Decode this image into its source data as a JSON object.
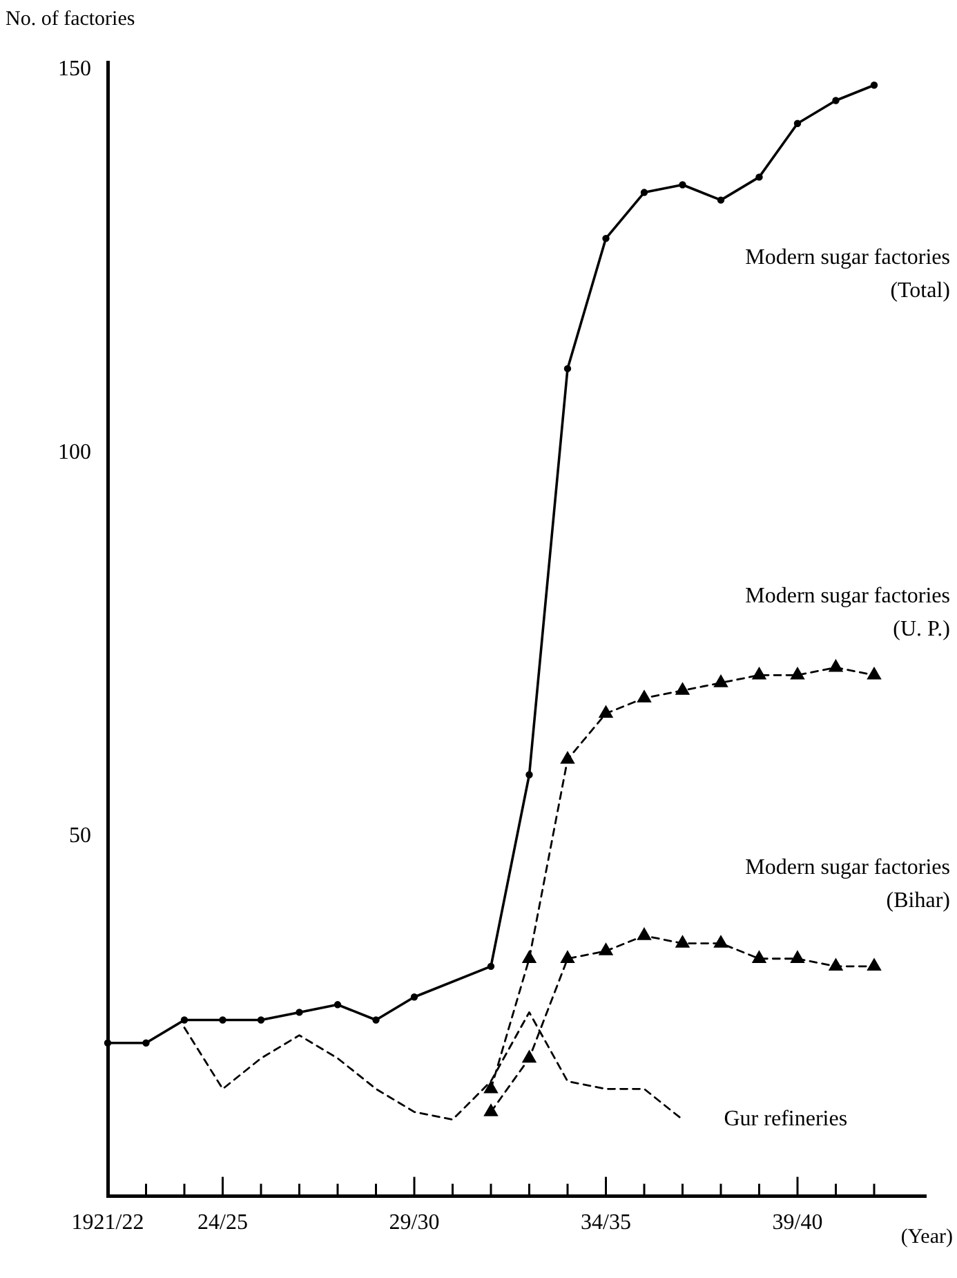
{
  "chart_data": {
    "type": "line",
    "ylabel": "No. of factories",
    "xlabel": "(Year)",
    "categories": [
      "1921/22",
      null,
      null,
      "24/25",
      null,
      null,
      null,
      null,
      "29/30",
      null,
      null,
      null,
      null,
      "34/35",
      null,
      null,
      null,
      null,
      "39/40",
      null,
      null
    ],
    "ylim": [
      3,
      151
    ],
    "yticks": [
      50,
      100,
      150
    ],
    "grid": false,
    "legend": false,
    "series": [
      {
        "name": "Modern sugar factories (Total)",
        "color": "#000000",
        "marker": "circle",
        "line_style": "solid",
        "values": [
          23,
          23,
          26,
          26,
          26,
          27,
          28,
          26,
          29,
          null,
          33,
          58,
          111,
          128,
          134,
          135,
          133,
          136,
          143,
          146,
          148
        ]
      },
      {
        "name": "Modern sugar factories (U. P.)",
        "color": "#000000",
        "marker": "triangle",
        "line_style": "dashed",
        "values": [
          null,
          null,
          null,
          null,
          null,
          null,
          null,
          null,
          null,
          null,
          17,
          34,
          60,
          66,
          68,
          69,
          70,
          71,
          71,
          72,
          71
        ]
      },
      {
        "name": "Modern sugar factories (Bihar)",
        "color": "#000000",
        "marker": "triangle",
        "line_style": "dashed",
        "values": [
          null,
          null,
          null,
          null,
          null,
          null,
          null,
          null,
          null,
          null,
          14,
          21,
          34,
          35,
          37,
          36,
          36,
          34,
          34,
          33,
          33
        ]
      },
      {
        "name": "Gur refineries",
        "color": "#000000",
        "marker": "none",
        "line_style": "dashed",
        "values": [
          null,
          null,
          25,
          17,
          21,
          24,
          21,
          17,
          14,
          13,
          18,
          27,
          18,
          17,
          17,
          13,
          null,
          null,
          null,
          null,
          null
        ]
      }
    ]
  }
}
